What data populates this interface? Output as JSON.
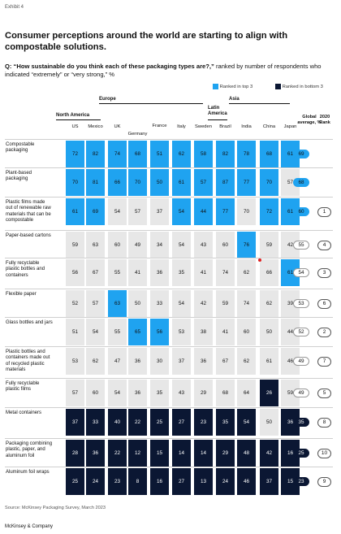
{
  "exhibit": "Exhibit 4",
  "title": "Consumer perceptions around the world are starting to align with compostable solutions.",
  "question": {
    "prefix": "Q: “How sustainable do you think each of these packaging types are?,” ",
    "suffix": "ranked by number of respondents who indicated “extremely” or “very strong,” %"
  },
  "legend": {
    "top3": "Ranked in top 3",
    "bottom3": "Ranked in bottom 3"
  },
  "colors": {
    "top3": "#1fa3f0",
    "bottom3": "#0b1733",
    "neutral": "#e7e7e7"
  },
  "regions": [
    "North America",
    "Europe",
    "Latin America",
    "Asia"
  ],
  "columns": [
    "US",
    "Mexico",
    "UK",
    "Germany",
    "France",
    "Italy",
    "Sweden",
    "Brazil",
    "India",
    "China",
    "Japan"
  ],
  "headers": {
    "global": "Global average, %",
    "rank": "2020 Rank"
  },
  "source": "Source: McKinsey Packaging Survey, March 2023",
  "footer": "McKinsey & Company",
  "chart_data": {
    "type": "table",
    "title": "Consumer perceptions around the world are starting to align with compostable solutions.",
    "unit": "%",
    "columns": [
      "US",
      "Mexico",
      "UK",
      "Germany",
      "France",
      "Italy",
      "Sweden",
      "Brazil",
      "India",
      "China",
      "Japan"
    ],
    "rows": [
      {
        "label": "Compostable packaging",
        "values": [
          72,
          82,
          74,
          68,
          51,
          62,
          58,
          82,
          78,
          68,
          61
        ],
        "status": [
          "t",
          "t",
          "t",
          "t",
          "t",
          "t",
          "t",
          "t",
          "t",
          "t",
          "t"
        ],
        "global": 69,
        "global_status": "t",
        "rank_2020": ""
      },
      {
        "label": "Plant-based packaging",
        "values": [
          70,
          81,
          66,
          70,
          50,
          61,
          57,
          87,
          77,
          70,
          57
        ],
        "status": [
          "t",
          "t",
          "t",
          "t",
          "t",
          "t",
          "t",
          "t",
          "t",
          "t",
          "n"
        ],
        "global": 68,
        "global_status": "t",
        "rank_2020": ""
      },
      {
        "label": "Plastic films made out of renewable raw materials that can be compostable",
        "values": [
          61,
          69,
          54,
          57,
          37,
          54,
          44,
          77,
          70,
          72,
          61
        ],
        "status": [
          "t",
          "t",
          "n",
          "n",
          "n",
          "t",
          "t",
          "t",
          "n",
          "t",
          "t"
        ],
        "global": 60,
        "global_status": "t",
        "rank_2020": "1"
      },
      {
        "label": "Paper-based cartons",
        "values": [
          59,
          63,
          60,
          49,
          34,
          54,
          43,
          60,
          76,
          59,
          42
        ],
        "status": [
          "n",
          "n",
          "n",
          "n",
          "n",
          "n",
          "n",
          "n",
          "t",
          "n",
          "n"
        ],
        "global": 55,
        "global_status": "n",
        "rank_2020": "4"
      },
      {
        "label": "Fully recyclable plastic bottles and containers",
        "values": [
          56,
          67,
          55,
          41,
          36,
          35,
          41,
          74,
          62,
          66,
          61
        ],
        "status": [
          "n",
          "n",
          "n",
          "n",
          "n",
          "n",
          "n",
          "n",
          "n",
          "n",
          "t"
        ],
        "global": 54,
        "global_status": "n",
        "rank_2020": "3"
      },
      {
        "label": "Flexible paper",
        "values": [
          52,
          57,
          63,
          50,
          33,
          54,
          42,
          59,
          74,
          62,
          39
        ],
        "status": [
          "n",
          "n",
          "t",
          "n",
          "n",
          "n",
          "n",
          "n",
          "n",
          "n",
          "n"
        ],
        "global": 53,
        "global_status": "n",
        "rank_2020": "6"
      },
      {
        "label": "Glass bottles and jars",
        "values": [
          51,
          54,
          55,
          65,
          56,
          53,
          38,
          41,
          60,
          50,
          44
        ],
        "status": [
          "n",
          "n",
          "n",
          "t",
          "t",
          "n",
          "n",
          "n",
          "n",
          "n",
          "n"
        ],
        "global": 52,
        "global_status": "n",
        "rank_2020": "2"
      },
      {
        "label": "Plastic bottles and containers made out of recycled plastic materials",
        "values": [
          53,
          62,
          47,
          36,
          30,
          37,
          36,
          67,
          62,
          61,
          46
        ],
        "status": [
          "n",
          "n",
          "n",
          "n",
          "n",
          "n",
          "n",
          "n",
          "n",
          "n",
          "n"
        ],
        "global": 49,
        "global_status": "n",
        "rank_2020": "7"
      },
      {
        "label": "Fully recyclable plastic films",
        "values": [
          57,
          60,
          54,
          36,
          35,
          43,
          29,
          68,
          64,
          26,
          59
        ],
        "status": [
          "n",
          "n",
          "n",
          "n",
          "n",
          "n",
          "n",
          "n",
          "n",
          "b",
          "n"
        ],
        "global": 49,
        "global_status": "n",
        "rank_2020": "5"
      },
      {
        "label": "Metal containers",
        "values": [
          37,
          33,
          40,
          22,
          25,
          27,
          23,
          35,
          54,
          50,
          36
        ],
        "status": [
          "b",
          "b",
          "b",
          "b",
          "b",
          "b",
          "b",
          "b",
          "b",
          "n",
          "b"
        ],
        "global": 35,
        "global_status": "b",
        "rank_2020": "8"
      },
      {
        "label": "Packaging combining plastic, paper, and aluminum foil",
        "values": [
          28,
          36,
          22,
          12,
          15,
          14,
          14,
          29,
          48,
          42,
          16
        ],
        "status": [
          "b",
          "b",
          "b",
          "b",
          "b",
          "b",
          "b",
          "b",
          "b",
          "b",
          "b"
        ],
        "global": 25,
        "global_status": "b",
        "rank_2020": "10"
      },
      {
        "label": "Aluminum foil wraps",
        "values": [
          25,
          24,
          23,
          8,
          16,
          27,
          13,
          24,
          46,
          37,
          15
        ],
        "status": [
          "b",
          "b",
          "b",
          "b",
          "b",
          "b",
          "b",
          "b",
          "b",
          "b",
          "b"
        ],
        "global": 23,
        "global_status": "b",
        "rank_2020": "9"
      }
    ]
  }
}
